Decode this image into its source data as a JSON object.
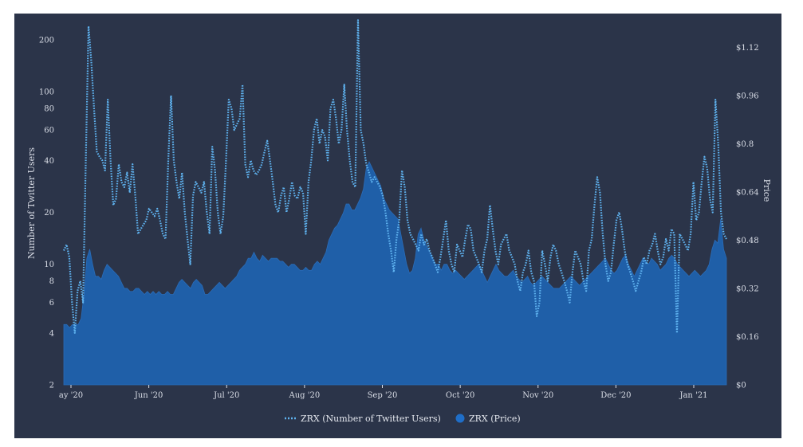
{
  "chart_data": {
    "type": "area",
    "title": "",
    "xlabel": "",
    "ylabel_left": "Number of Twitter Users",
    "ylabel_right": "Price",
    "left_axis": {
      "scale": "log",
      "range": [
        2,
        250
      ],
      "ticks": [
        "2",
        "4",
        "6",
        "8",
        "10",
        "20",
        "40",
        "60",
        "80",
        "100",
        "200"
      ]
    },
    "right_axis": {
      "scale": "linear",
      "range": [
        0,
        1.2
      ],
      "ticks": [
        "$0",
        "$0.16",
        "$0.32",
        "$0.48",
        "$0.64",
        "$0.8",
        "$0.96",
        "$1.12"
      ]
    },
    "x_ticks": [
      "ay '20",
      "Jun '20",
      "Jul '20",
      "Aug '20",
      "Sep '20",
      "Oct '20",
      "Nov '20",
      "Dec '20",
      "Jan '21"
    ],
    "grid": false,
    "legend_position": "bottom-center",
    "colors": {
      "background": "#2b3449",
      "twitter_line": "#5fb3f0",
      "price_area": "#1f5fa8"
    },
    "series": [
      {
        "name": "ZRX (Number of Twitter Users)",
        "axis": "left",
        "style": "dotted-line",
        "values": [
          12,
          13,
          11,
          6,
          4,
          7,
          8,
          6,
          40,
          240,
          150,
          80,
          45,
          42,
          40,
          35,
          90,
          40,
          22,
          24,
          38,
          30,
          28,
          34,
          26,
          38,
          25,
          15,
          16,
          17,
          18,
          21,
          20,
          19,
          21,
          18,
          15,
          14,
          40,
          95,
          40,
          30,
          24,
          34,
          20,
          14,
          10,
          25,
          30,
          28,
          26,
          30,
          20,
          15,
          48,
          35,
          20,
          15,
          19,
          40,
          90,
          80,
          60,
          65,
          70,
          110,
          38,
          32,
          40,
          35,
          33,
          35,
          38,
          45,
          52,
          40,
          30,
          22,
          20,
          25,
          28,
          20,
          24,
          30,
          25,
          24,
          28,
          26,
          15,
          30,
          40,
          60,
          70,
          50,
          60,
          55,
          40,
          80,
          90,
          70,
          50,
          60,
          110,
          60,
          40,
          30,
          28,
          260,
          60,
          50,
          38,
          34,
          30,
          32,
          30,
          28,
          25,
          20,
          15,
          12,
          9,
          14,
          18,
          35,
          28,
          18,
          15,
          14,
          13,
          12,
          15,
          13,
          14,
          12,
          11,
          10,
          9,
          11,
          14,
          18,
          12,
          10,
          9,
          13,
          12,
          11,
          14,
          17,
          16,
          12,
          11,
          10,
          9,
          12,
          14,
          22,
          16,
          12,
          10,
          13,
          14,
          15,
          12,
          11,
          10,
          8,
          7,
          9,
          10,
          12,
          9,
          8,
          5,
          6,
          12,
          10,
          8,
          11,
          13,
          12,
          10,
          9,
          8,
          7,
          6,
          9,
          12,
          11,
          10,
          8,
          7,
          12,
          14,
          22,
          32,
          26,
          15,
          10,
          8,
          9,
          13,
          18,
          20,
          16,
          12,
          10,
          9,
          8,
          7,
          8,
          9,
          11,
          10,
          12,
          13,
          15,
          12,
          10,
          11,
          14,
          12,
          16,
          15,
          4,
          15,
          14,
          13,
          12,
          15,
          30,
          18,
          20,
          30,
          42,
          36,
          24,
          20,
          90,
          50,
          20,
          15,
          14
        ]
      },
      {
        "name": "ZRX (Price)",
        "axis": "right",
        "style": "area",
        "values": [
          0.2,
          0.2,
          0.19,
          0.2,
          0.2,
          0.2,
          0.22,
          0.3,
          0.42,
          0.45,
          0.4,
          0.36,
          0.36,
          0.35,
          0.38,
          0.4,
          0.39,
          0.38,
          0.37,
          0.36,
          0.34,
          0.32,
          0.32,
          0.31,
          0.31,
          0.32,
          0.32,
          0.31,
          0.3,
          0.31,
          0.3,
          0.31,
          0.3,
          0.31,
          0.3,
          0.3,
          0.31,
          0.3,
          0.3,
          0.32,
          0.34,
          0.35,
          0.34,
          0.33,
          0.32,
          0.34,
          0.35,
          0.34,
          0.33,
          0.3,
          0.3,
          0.31,
          0.32,
          0.33,
          0.34,
          0.33,
          0.32,
          0.33,
          0.34,
          0.35,
          0.36,
          0.38,
          0.39,
          0.4,
          0.42,
          0.42,
          0.44,
          0.42,
          0.41,
          0.43,
          0.42,
          0.41,
          0.42,
          0.42,
          0.42,
          0.41,
          0.41,
          0.4,
          0.39,
          0.4,
          0.4,
          0.39,
          0.38,
          0.38,
          0.39,
          0.38,
          0.38,
          0.4,
          0.41,
          0.4,
          0.42,
          0.44,
          0.48,
          0.5,
          0.52,
          0.53,
          0.55,
          0.57,
          0.6,
          0.6,
          0.58,
          0.58,
          0.6,
          0.62,
          0.65,
          0.72,
          0.74,
          0.72,
          0.7,
          0.68,
          0.66,
          0.62,
          0.6,
          0.58,
          0.57,
          0.56,
          0.55,
          0.5,
          0.45,
          0.4,
          0.37,
          0.38,
          0.42,
          0.5,
          0.52,
          0.48,
          0.46,
          0.44,
          0.42,
          0.4,
          0.4,
          0.38,
          0.4,
          0.4,
          0.38,
          0.37,
          0.38,
          0.37,
          0.36,
          0.35,
          0.36,
          0.37,
          0.38,
          0.39,
          0.4,
          0.38,
          0.36,
          0.34,
          0.36,
          0.38,
          0.4,
          0.38,
          0.37,
          0.36,
          0.36,
          0.37,
          0.38,
          0.36,
          0.35,
          0.34,
          0.35,
          0.36,
          0.34,
          0.33,
          0.34,
          0.35,
          0.36,
          0.35,
          0.34,
          0.33,
          0.32,
          0.32,
          0.32,
          0.33,
          0.34,
          0.35,
          0.36,
          0.35,
          0.34,
          0.33,
          0.34,
          0.35,
          0.36,
          0.37,
          0.38,
          0.39,
          0.4,
          0.41,
          0.42,
          0.4,
          0.38,
          0.37,
          0.38,
          0.4,
          0.42,
          0.43,
          0.4,
          0.38,
          0.36,
          0.38,
          0.4,
          0.42,
          0.41,
          0.4,
          0.42,
          0.41,
          0.4,
          0.38,
          0.39,
          0.4,
          0.42,
          0.43,
          0.42,
          0.4,
          0.39,
          0.38,
          0.37,
          0.36,
          0.37,
          0.38,
          0.37,
          0.36,
          0.37,
          0.38,
          0.4,
          0.45,
          0.48,
          0.47,
          0.55,
          0.45,
          0.42
        ]
      }
    ]
  }
}
